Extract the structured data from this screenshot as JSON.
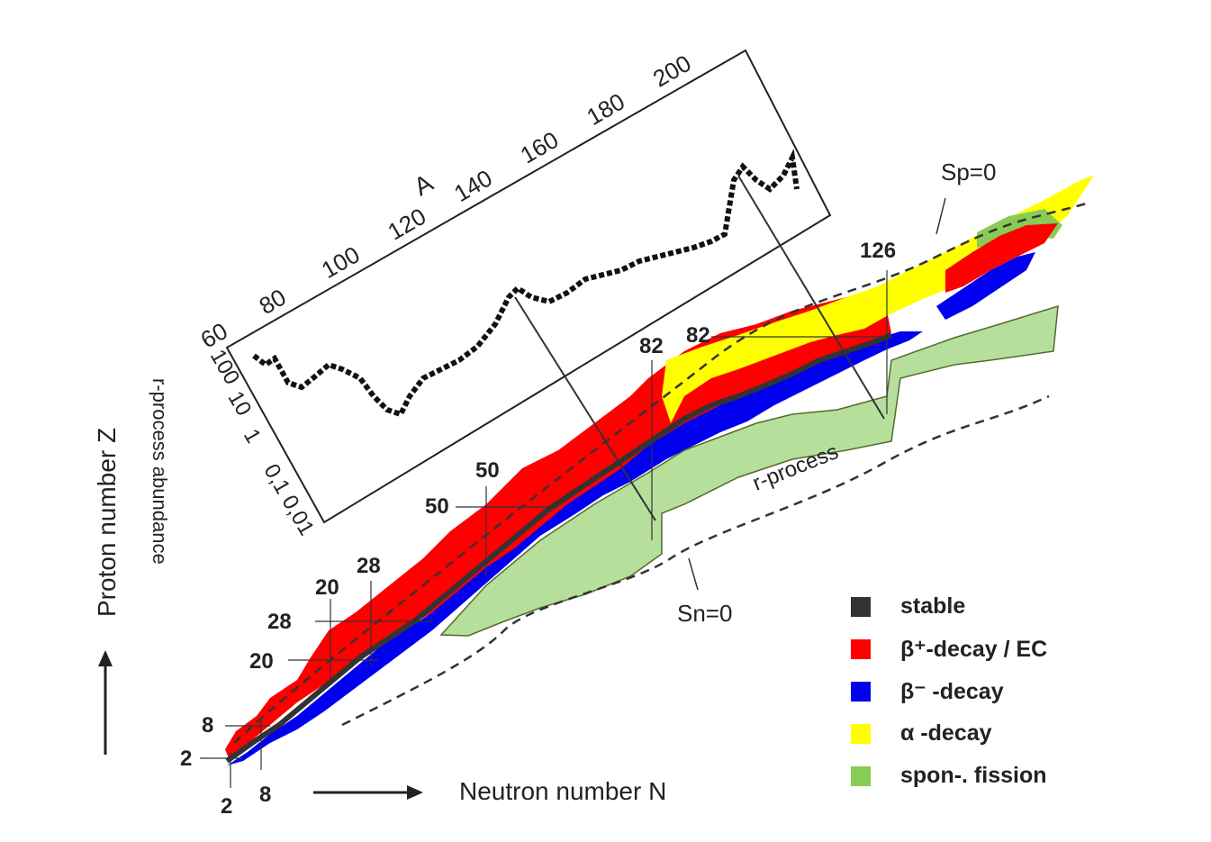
{
  "axes": {
    "x_label": "Neutron number N",
    "y_label": "Proton number Z"
  },
  "magic_labels": {
    "n2": "2",
    "n8": "8",
    "n20": "20",
    "n28": "28",
    "n50": "50",
    "n82": "82",
    "n126": "126",
    "z2": "2",
    "z8": "8",
    "z20": "20",
    "z28": "28",
    "z50": "50",
    "z82": "82"
  },
  "driplines": {
    "proton": "Sp=0",
    "neutron": "Sn=0"
  },
  "path_label": "r-process",
  "inset": {
    "a_label": "A",
    "a_ticks": [
      "60",
      "80",
      "100",
      "120",
      "140",
      "160",
      "180",
      "200"
    ],
    "ylabel": "r-process abundance",
    "y_ticks": [
      "100",
      "10",
      "1",
      "0,1",
      "0,01"
    ]
  },
  "legend": [
    {
      "label": "stable",
      "color": "#333333"
    },
    {
      "label": "β⁺-decay / EC",
      "color": "#ff0000"
    },
    {
      "label": "β⁻ -decay",
      "color": "#0000ee"
    },
    {
      "label": "α -decay",
      "color": "#ffff00"
    },
    {
      "label": "spon-. fission",
      "color": "#88cc55"
    }
  ],
  "colors": {
    "stable": "#333333",
    "beta_plus": "#ff0000",
    "beta_minus": "#0000ee",
    "alpha": "#ffff00",
    "fission": "#88cc55",
    "r_process_band": "#a9d98a"
  }
}
